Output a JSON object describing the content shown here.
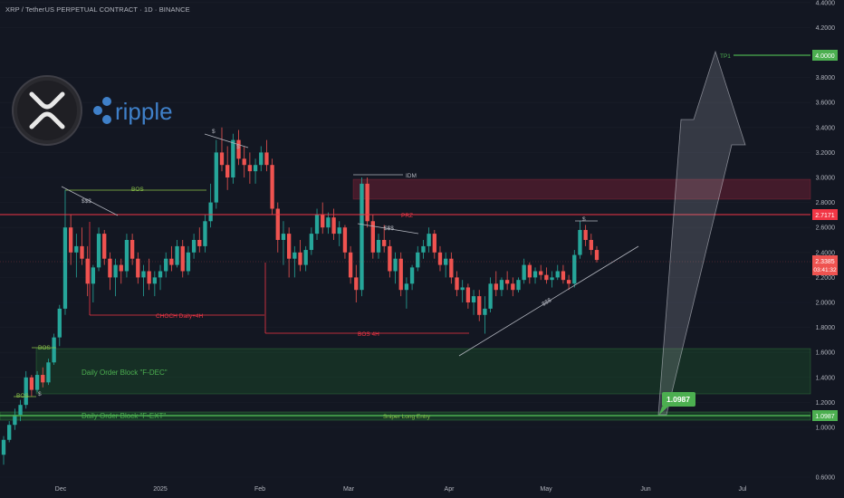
{
  "header": {
    "title": "XRP / TetherUS PERPETUAL CONTRACT · 1D · BINANCE"
  },
  "logo": {
    "brand_text": "ripple"
  },
  "colors": {
    "bg": "#131722",
    "up": "#26a69a",
    "down": "#ef5350",
    "accent_green": "#4caf50",
    "red_line": "#f23645",
    "grid": "#1e222d"
  },
  "price_axis": {
    "ticks": [
      "4.4000",
      "4.2000",
      "3.8000",
      "3.6000",
      "3.4000",
      "3.2000",
      "3.0000",
      "2.8000",
      "2.6000",
      "2.4000",
      "2.2000",
      "2.0000",
      "1.8000",
      "1.6000",
      "1.4000",
      "1.2000",
      "1.0000",
      "0.6000"
    ]
  },
  "time_axis": {
    "labels": [
      "Dec",
      "2025",
      "Feb",
      "Mar",
      "Apr",
      "May",
      "Jun",
      "Jul"
    ]
  },
  "badges": {
    "tp1": "4.0000",
    "prz": "2.7171",
    "current_price": "2.3385",
    "countdown": "03:41:32",
    "entry_axis": "1.0987",
    "entry_chart": "1.0987"
  },
  "annotations": {
    "tp1": "TP1",
    "idm": "IDM",
    "prz": "PRZ",
    "bos_top": "BOS",
    "choch": "CHOCH Daily+4H",
    "bos_4h": "BOS 4H",
    "liq1": "$$$",
    "liq2": "$$$",
    "liq3": "$$$",
    "s1": "$",
    "s2": "$",
    "s3": "$",
    "s4": "$",
    "bos_small1": "BOS",
    "bos_small2": "BOS",
    "ob_fdec": "Daily Order Block \"F-DEC\"",
    "ob_fext": "Daily Order Block \"F-EXT\"",
    "sniper": "Sniper Long Entry"
  },
  "chart_data": {
    "type": "candlestick",
    "symbol": "XRPUSDT.P",
    "timeframe": "1D",
    "series": [
      {
        "name": "ohlc",
        "values": [
          [
            0.78,
            0.93,
            0.7,
            0.9
          ],
          [
            0.9,
            1.05,
            0.88,
            1.02
          ],
          [
            1.02,
            1.15,
            0.98,
            1.1
          ],
          [
            1.1,
            1.22,
            1.05,
            1.18
          ],
          [
            1.18,
            1.45,
            1.15,
            1.4
          ],
          [
            1.4,
            1.42,
            1.25,
            1.3
          ],
          [
            1.3,
            1.45,
            1.28,
            1.42
          ],
          [
            1.42,
            1.48,
            1.32,
            1.36
          ],
          [
            1.36,
            1.55,
            1.34,
            1.52
          ],
          [
            1.52,
            1.75,
            1.5,
            1.72
          ],
          [
            1.72,
            1.98,
            1.65,
            1.95
          ],
          [
            1.95,
            2.9,
            1.9,
            2.6
          ],
          [
            2.6,
            2.7,
            2.3,
            2.4
          ],
          [
            2.4,
            2.55,
            2.2,
            2.45
          ],
          [
            2.45,
            2.6,
            2.3,
            2.35
          ],
          [
            2.35,
            2.45,
            2.05,
            2.15
          ],
          [
            2.15,
            2.3,
            2.0,
            2.28
          ],
          [
            2.28,
            2.6,
            2.25,
            2.55
          ],
          [
            2.55,
            2.58,
            2.3,
            2.35
          ],
          [
            2.35,
            2.4,
            2.1,
            2.2
          ],
          [
            2.2,
            2.35,
            2.05,
            2.3
          ],
          [
            2.3,
            2.35,
            2.15,
            2.25
          ],
          [
            2.25,
            2.55,
            2.2,
            2.5
          ],
          [
            2.5,
            2.55,
            2.3,
            2.35
          ],
          [
            2.35,
            2.4,
            2.15,
            2.2
          ],
          [
            2.2,
            2.3,
            2.05,
            2.25
          ],
          [
            2.25,
            2.35,
            2.1,
            2.15
          ],
          [
            2.15,
            2.25,
            2.05,
            2.2
          ],
          [
            2.2,
            2.3,
            2.1,
            2.25
          ],
          [
            2.25,
            2.4,
            2.2,
            2.35
          ],
          [
            2.35,
            2.45,
            2.25,
            2.3
          ],
          [
            2.3,
            2.5,
            2.28,
            2.45
          ],
          [
            2.45,
            2.5,
            2.2,
            2.25
          ],
          [
            2.25,
            2.45,
            2.22,
            2.4
          ],
          [
            2.4,
            2.55,
            2.35,
            2.5
          ],
          [
            2.5,
            2.6,
            2.4,
            2.45
          ],
          [
            2.45,
            2.7,
            2.4,
            2.65
          ],
          [
            2.65,
            2.95,
            2.6,
            2.8
          ],
          [
            2.8,
            3.3,
            2.75,
            3.2
          ],
          [
            3.2,
            3.4,
            3.05,
            3.1
          ],
          [
            3.1,
            3.25,
            2.9,
            3.0
          ],
          [
            3.0,
            3.35,
            2.95,
            3.3
          ],
          [
            3.3,
            3.38,
            3.1,
            3.15
          ],
          [
            3.15,
            3.25,
            3.0,
            3.1
          ],
          [
            3.1,
            3.2,
            2.95,
            3.05
          ],
          [
            3.05,
            3.15,
            2.95,
            3.1
          ],
          [
            3.1,
            3.25,
            3.05,
            3.2
          ],
          [
            3.2,
            3.3,
            3.05,
            3.1
          ],
          [
            3.1,
            3.15,
            2.7,
            2.75
          ],
          [
            2.75,
            2.8,
            2.4,
            2.5
          ],
          [
            2.5,
            2.65,
            2.3,
            2.55
          ],
          [
            2.55,
            2.6,
            2.2,
            2.35
          ],
          [
            2.35,
            2.45,
            2.2,
            2.4
          ],
          [
            2.4,
            2.5,
            2.25,
            2.3
          ],
          [
            2.3,
            2.45,
            2.25,
            2.42
          ],
          [
            2.42,
            2.6,
            2.38,
            2.55
          ],
          [
            2.55,
            2.75,
            2.5,
            2.7
          ],
          [
            2.7,
            2.8,
            2.55,
            2.6
          ],
          [
            2.6,
            2.72,
            2.55,
            2.68
          ],
          [
            2.68,
            2.75,
            2.5,
            2.55
          ],
          [
            2.55,
            2.65,
            2.45,
            2.6
          ],
          [
            2.6,
            2.62,
            2.35,
            2.4
          ],
          [
            2.4,
            2.45,
            2.15,
            2.2
          ],
          [
            2.2,
            2.3,
            2.0,
            2.1
          ],
          [
            2.1,
            3.0,
            2.05,
            2.95
          ],
          [
            2.95,
            3.0,
            2.6,
            2.65
          ],
          [
            2.65,
            2.7,
            2.35,
            2.4
          ],
          [
            2.4,
            2.55,
            2.35,
            2.5
          ],
          [
            2.5,
            2.62,
            2.4,
            2.45
          ],
          [
            2.45,
            2.5,
            2.2,
            2.25
          ],
          [
            2.25,
            2.4,
            2.15,
            2.35
          ],
          [
            2.35,
            2.4,
            2.05,
            2.1
          ],
          [
            2.1,
            2.2,
            1.95,
            2.15
          ],
          [
            2.15,
            2.3,
            2.1,
            2.28
          ],
          [
            2.28,
            2.45,
            2.25,
            2.4
          ],
          [
            2.4,
            2.5,
            2.35,
            2.45
          ],
          [
            2.45,
            2.6,
            2.4,
            2.55
          ],
          [
            2.55,
            2.58,
            2.35,
            2.4
          ],
          [
            2.4,
            2.45,
            2.25,
            2.3
          ],
          [
            2.3,
            2.4,
            2.2,
            2.35
          ],
          [
            2.35,
            2.4,
            2.15,
            2.2
          ],
          [
            2.2,
            2.25,
            2.05,
            2.1
          ],
          [
            2.1,
            2.18,
            2.0,
            2.12
          ],
          [
            2.12,
            2.15,
            1.95,
            2.0
          ],
          [
            2.0,
            2.1,
            1.9,
            2.05
          ],
          [
            2.05,
            2.1,
            1.85,
            1.9
          ],
          [
            1.9,
            2.05,
            1.75,
            1.95
          ],
          [
            1.95,
            2.2,
            1.92,
            2.15
          ],
          [
            2.15,
            2.25,
            2.05,
            2.1
          ],
          [
            2.1,
            2.2,
            2.05,
            2.18
          ],
          [
            2.18,
            2.25,
            2.1,
            2.15
          ],
          [
            2.15,
            2.2,
            2.05,
            2.1
          ],
          [
            2.1,
            2.2,
            2.08,
            2.18
          ],
          [
            2.18,
            2.35,
            2.15,
            2.3
          ],
          [
            2.3,
            2.32,
            2.15,
            2.2
          ],
          [
            2.2,
            2.28,
            2.15,
            2.25
          ],
          [
            2.25,
            2.3,
            2.18,
            2.22
          ],
          [
            2.22,
            2.28,
            2.15,
            2.18
          ],
          [
            2.18,
            2.25,
            2.12,
            2.2
          ],
          [
            2.2,
            2.3,
            2.18,
            2.25
          ],
          [
            2.25,
            2.3,
            2.15,
            2.18
          ],
          [
            2.18,
            2.22,
            2.1,
            2.15
          ],
          [
            2.15,
            2.42,
            2.12,
            2.38
          ],
          [
            2.38,
            2.65,
            2.35,
            2.58
          ],
          [
            2.58,
            2.62,
            2.45,
            2.5
          ],
          [
            2.5,
            2.55,
            2.38,
            2.42
          ],
          [
            2.42,
            2.45,
            2.32,
            2.34
          ]
        ]
      }
    ],
    "x": {
      "labels": [
        "Dec",
        "2025",
        "Feb",
        "Mar",
        "Apr",
        "May",
        "Jun",
        "Jul"
      ]
    },
    "ylim": [
      0.6,
      4.4
    ],
    "levels": [
      {
        "name": "TP1",
        "value": 4.0
      },
      {
        "name": "PRZ",
        "value": 2.7171
      },
      {
        "name": "Sniper Long Entry",
        "value": 1.0987
      }
    ],
    "zones": [
      {
        "name": "IDM zone",
        "from": 2.84,
        "to": 3.0
      },
      {
        "name": "Daily Order Block \"F-DEC\"",
        "from": 1.28,
        "to": 1.63
      },
      {
        "name": "Daily Order Block \"F-EXT\"",
        "from": 1.07,
        "to": 1.11
      }
    ]
  }
}
